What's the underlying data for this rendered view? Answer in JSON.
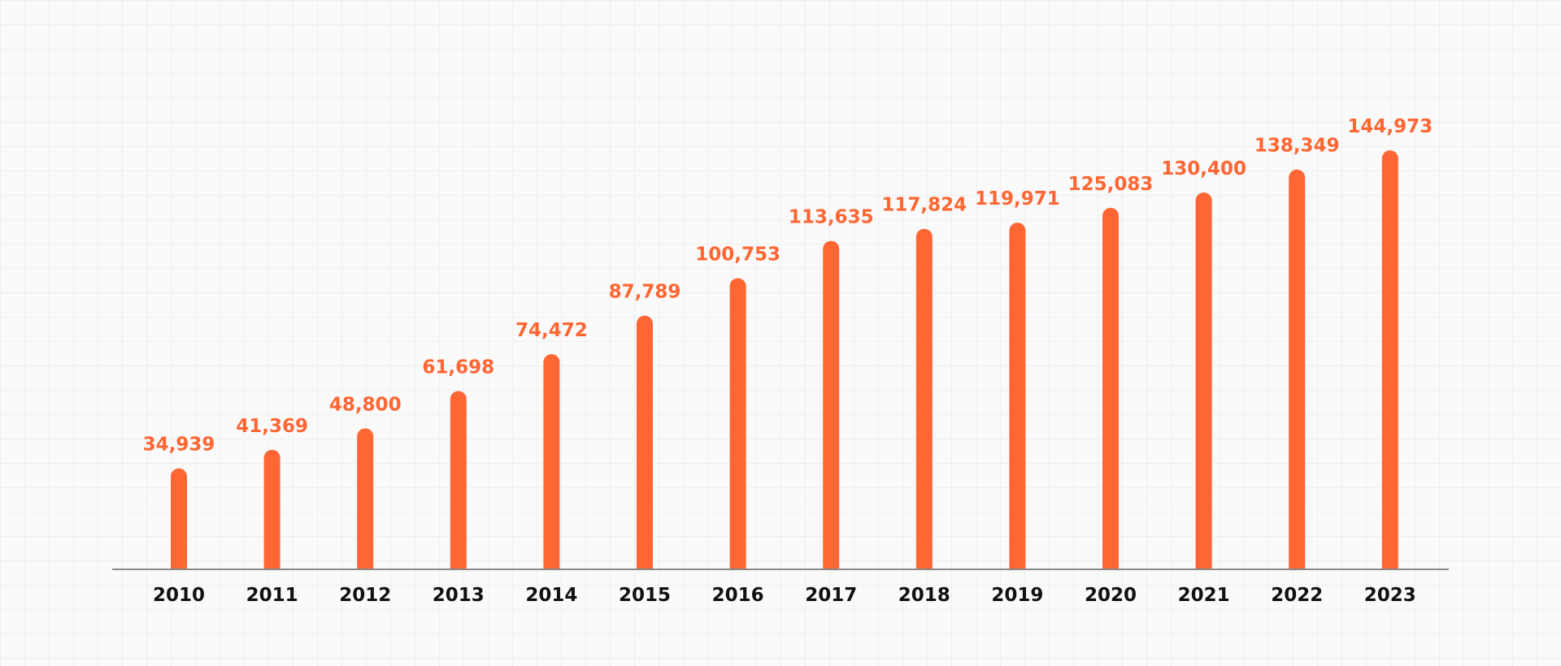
{
  "chart_data": {
    "type": "bar",
    "title": "",
    "xlabel": "",
    "ylabel": "",
    "categories": [
      "2010",
      "2011",
      "2012",
      "2013",
      "2014",
      "2015",
      "2016",
      "2017",
      "2018",
      "2019",
      "2020",
      "2021",
      "2022",
      "2023"
    ],
    "values": [
      34939,
      41369,
      48800,
      61698,
      74472,
      87789,
      100753,
      113635,
      117824,
      119971,
      125083,
      130400,
      138349,
      144973
    ],
    "value_labels": [
      "34,939",
      "41,369",
      "48,800",
      "61,698",
      "74,472",
      "87,789",
      "100,753",
      "113,635",
      "117,824",
      "119,971",
      "125,083",
      "130,400",
      "138,349",
      "144,973"
    ],
    "ylim": [
      0,
      150000
    ],
    "grid": true,
    "legend": "none",
    "colors": {
      "bar": "#ff6633",
      "value_label": "#ff6633",
      "tick_label": "#111111",
      "axis": "#888888"
    }
  }
}
